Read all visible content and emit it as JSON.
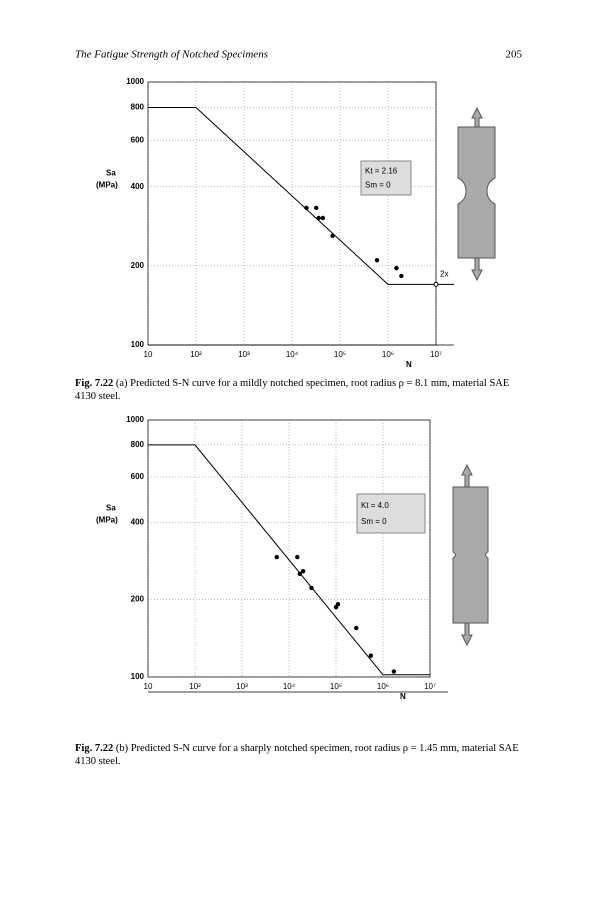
{
  "header": {
    "title": "The Fatigue Strength of Notched Specimens",
    "page": "205"
  },
  "chart_data": [
    {
      "type": "line",
      "xlabel": "N",
      "ylabel": [
        "Sa",
        "(MPa)"
      ],
      "log_x": true,
      "log_y": true,
      "grid": true,
      "xlim": [
        10,
        10000000
      ],
      "ylim": [
        100,
        1000
      ],
      "xticks": [
        10,
        {
          "value": 100,
          "label": "10²"
        },
        {
          "value": 1000,
          "label": "10³"
        },
        {
          "value": 10000,
          "label": "10⁴"
        },
        {
          "value": 100000,
          "label": "10⁵"
        },
        {
          "value": 1000000,
          "label": "10⁶"
        },
        {
          "value": 10000000,
          "label": "10⁷"
        }
      ],
      "yticks": [
        100,
        200,
        400,
        600,
        800,
        1000
      ],
      "curve": {
        "color": "#000000",
        "x": [
          10,
          100,
          1000000,
          10000000
        ],
        "values": [
          800,
          800,
          170,
          170
        ]
      },
      "points": {
        "color": "#000000",
        "x": [
          20000,
          32000,
          36000,
          44000,
          70000,
          590000,
          1500000,
          1900000
        ],
        "values": [
          332,
          332,
          304,
          304,
          260,
          210,
          196,
          183
        ]
      },
      "annotations": [
        "Kt = 2.16",
        "Sm = 0",
        "2x"
      ],
      "caption": {
        "label": "Fig. 7.22",
        "text": "(a) Predicted S-N curve for a mildly notched specimen, root radius ρ = 8.1 mm, material SAE 4130 steel."
      }
    },
    {
      "type": "line",
      "xlabel": "N",
      "ylabel": [
        "Sa",
        "(MPa)"
      ],
      "log_x": true,
      "log_y": true,
      "grid": true,
      "xlim": [
        10,
        10000000
      ],
      "ylim": [
        100,
        1000
      ],
      "xticks": [
        10,
        {
          "value": 100,
          "label": "10²"
        },
        {
          "value": 1000,
          "label": "10³"
        },
        {
          "value": 10000,
          "label": "10⁴"
        },
        {
          "value": 100000,
          "label": "10⁵"
        },
        {
          "value": 1000000,
          "label": "10⁶"
        },
        {
          "value": 10000000,
          "label": "10⁷"
        }
      ],
      "yticks": [
        100,
        200,
        400,
        600,
        800,
        1000
      ],
      "curve": {
        "color": "#000000",
        "x": [
          10,
          100,
          1000000,
          10000000
        ],
        "values": [
          800,
          800,
          102,
          102
        ]
      },
      "points": {
        "color": "#000000",
        "x": [
          5500,
          15000,
          17000,
          20000,
          30000,
          100000,
          110000,
          270000,
          550000,
          1700000
        ],
        "values": [
          293,
          293,
          252,
          258,
          222,
          187,
          192,
          155,
          121,
          105
        ]
      },
      "annotations": [
        "Kt = 4.0",
        "Sm = 0"
      ],
      "caption": {
        "label": "Fig. 7.22",
        "text": "(b) Predicted S-N curve for a sharply notched specimen, root radius ρ = 1.45 mm, material SAE 4130 steel."
      }
    }
  ]
}
